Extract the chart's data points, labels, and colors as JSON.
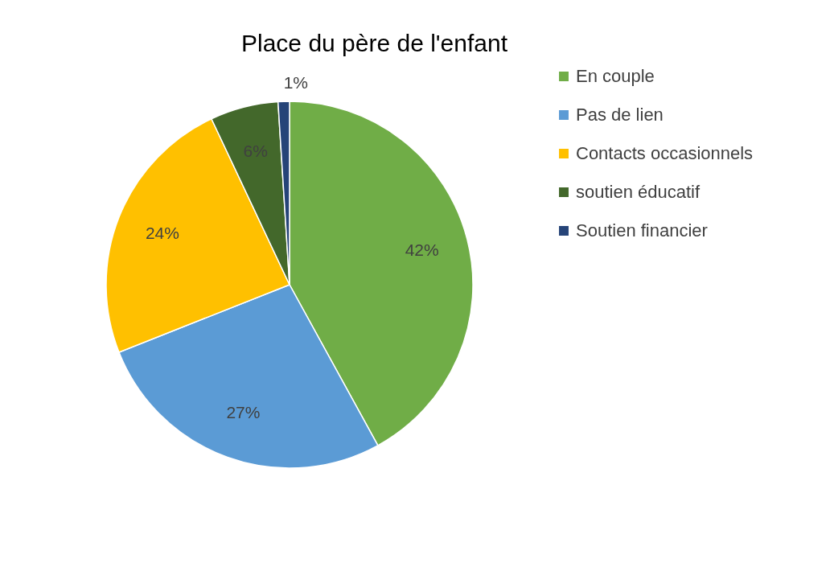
{
  "chart_data": {
    "type": "pie",
    "title": "Place du père de l'enfant",
    "categories": [
      "En couple",
      "Pas de lien",
      "Contacts occasionnels",
      "soutien éducatif",
      "Soutien financier"
    ],
    "values": [
      42,
      27,
      24,
      6,
      1
    ],
    "colors": [
      "#70ad47",
      "#5b9bd5",
      "#ffc000",
      "#43682b",
      "#264478"
    ],
    "value_labels": [
      "42%",
      "27%",
      "24%",
      "6%",
      "1%"
    ],
    "legend": "right"
  }
}
